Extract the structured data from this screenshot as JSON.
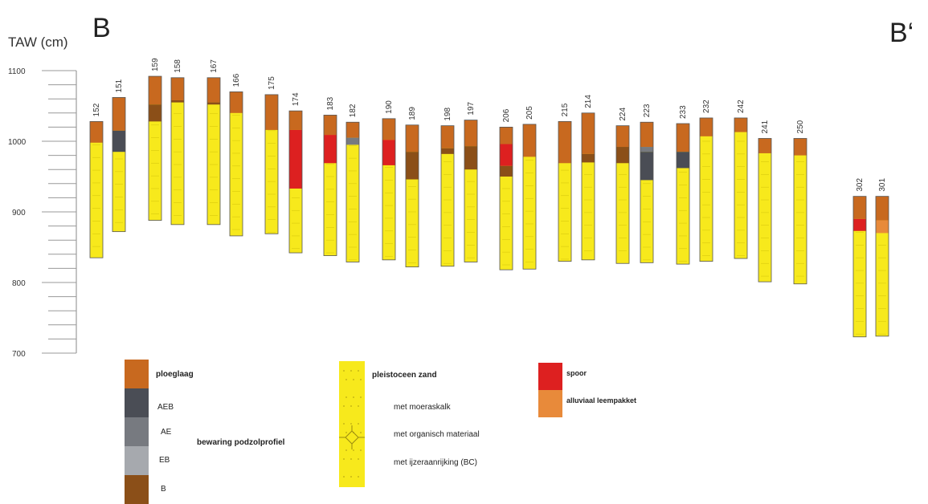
{
  "header": {
    "axis_title": "TAW (cm)",
    "section_start": "B",
    "section_end": "B‘"
  },
  "axis": {
    "min": 700,
    "max": 1100,
    "labeled_ticks": [
      "1100",
      "1000",
      "900",
      "800",
      "700"
    ],
    "minor_step": 20
  },
  "colors": {
    "ploeglaag": "#c8691f",
    "AEB": "#4a4d55",
    "AE": "#777a80",
    "EB": "#a6a9ae",
    "B": "#8b4f18",
    "zand": "#f7e91c",
    "spoor": "#dd2020",
    "alluviaal": "#e88a3a"
  },
  "boreholes": [
    {
      "id": "152",
      "top": 1028,
      "bottom": 835,
      "layers": [
        {
          "t": "ploeglaag",
          "from": 1028,
          "to": 998
        }
      ]
    },
    {
      "id": "151",
      "top": 1062,
      "bottom": 872,
      "layers": [
        {
          "t": "ploeglaag",
          "from": 1062,
          "to": 1015
        },
        {
          "t": "AEB",
          "from": 1015,
          "to": 985
        }
      ]
    },
    {
      "id": "159",
      "top": 1092,
      "bottom": 888,
      "layers": [
        {
          "t": "ploeglaag",
          "from": 1092,
          "to": 1052
        },
        {
          "t": "B",
          "from": 1052,
          "to": 1028
        }
      ]
    },
    {
      "id": "158",
      "top": 1090,
      "bottom": 882,
      "layers": [
        {
          "t": "ploeglaag",
          "from": 1090,
          "to": 1058
        },
        {
          "t": "B",
          "from": 1058,
          "to": 1055
        }
      ]
    },
    {
      "id": "167",
      "top": 1090,
      "bottom": 882,
      "layers": [
        {
          "t": "ploeglaag",
          "from": 1090,
          "to": 1055
        },
        {
          "t": "B",
          "from": 1055,
          "to": 1052
        }
      ]
    },
    {
      "id": "166",
      "top": 1070,
      "bottom": 866,
      "layers": [
        {
          "t": "ploeglaag",
          "from": 1070,
          "to": 1040
        }
      ]
    },
    {
      "id": "175",
      "top": 1066,
      "bottom": 869,
      "layers": [
        {
          "t": "ploeglaag",
          "from": 1066,
          "to": 1016
        }
      ]
    },
    {
      "id": "174",
      "top": 1043,
      "bottom": 842,
      "layers": [
        {
          "t": "ploeglaag",
          "from": 1043,
          "to": 1016
        },
        {
          "t": "spoor",
          "from": 1016,
          "to": 933
        }
      ]
    },
    {
      "id": "183",
      "top": 1037,
      "bottom": 838,
      "layers": [
        {
          "t": "ploeglaag",
          "from": 1037,
          "to": 1009
        },
        {
          "t": "spoor",
          "from": 1009,
          "to": 969
        }
      ]
    },
    {
      "id": "182",
      "top": 1027,
      "bottom": 829,
      "layers": [
        {
          "t": "ploeglaag",
          "from": 1027,
          "to": 1005
        },
        {
          "t": "AE",
          "from": 1005,
          "to": 995
        }
      ]
    },
    {
      "id": "190",
      "top": 1032,
      "bottom": 832,
      "layers": [
        {
          "t": "ploeglaag",
          "from": 1032,
          "to": 1002
        },
        {
          "t": "spoor",
          "from": 1002,
          "to": 966
        }
      ]
    },
    {
      "id": "189",
      "top": 1023,
      "bottom": 822,
      "layers": [
        {
          "t": "ploeglaag",
          "from": 1023,
          "to": 985
        },
        {
          "t": "B",
          "from": 985,
          "to": 946
        }
      ]
    },
    {
      "id": "198",
      "top": 1022,
      "bottom": 823,
      "layers": [
        {
          "t": "ploeglaag",
          "from": 1022,
          "to": 990
        },
        {
          "t": "B",
          "from": 990,
          "to": 982
        }
      ]
    },
    {
      "id": "197",
      "top": 1030,
      "bottom": 829,
      "layers": [
        {
          "t": "ploeglaag",
          "from": 1030,
          "to": 993
        },
        {
          "t": "B",
          "from": 993,
          "to": 960
        }
      ]
    },
    {
      "id": "206",
      "top": 1020,
      "bottom": 818,
      "layers": [
        {
          "t": "ploeglaag",
          "from": 1020,
          "to": 996
        },
        {
          "t": "spoor",
          "from": 996,
          "to": 965
        },
        {
          "t": "B",
          "from": 965,
          "to": 950
        }
      ]
    },
    {
      "id": "205",
      "top": 1024,
      "bottom": 819,
      "layers": [
        {
          "t": "ploeglaag",
          "from": 1024,
          "to": 978
        }
      ]
    },
    {
      "id": "215",
      "top": 1028,
      "bottom": 830,
      "layers": [
        {
          "t": "ploeglaag",
          "from": 1028,
          "to": 969
        }
      ]
    },
    {
      "id": "214",
      "top": 1040,
      "bottom": 832,
      "layers": [
        {
          "t": "ploeglaag",
          "from": 1040,
          "to": 982
        },
        {
          "t": "B",
          "from": 982,
          "to": 970
        }
      ]
    },
    {
      "id": "224",
      "top": 1022,
      "bottom": 827,
      "layers": [
        {
          "t": "ploeglaag",
          "from": 1022,
          "to": 992
        },
        {
          "t": "B",
          "from": 992,
          "to": 969
        }
      ]
    },
    {
      "id": "223",
      "top": 1027,
      "bottom": 828,
      "layers": [
        {
          "t": "ploeglaag",
          "from": 1027,
          "to": 992
        },
        {
          "t": "AE",
          "from": 992,
          "to": 985
        },
        {
          "t": "AEB",
          "from": 985,
          "to": 945
        }
      ]
    },
    {
      "id": "233",
      "top": 1025,
      "bottom": 826,
      "layers": [
        {
          "t": "ploeglaag",
          "from": 1025,
          "to": 985
        },
        {
          "t": "AEB",
          "from": 985,
          "to": 962
        }
      ]
    },
    {
      "id": "232",
      "top": 1033,
      "bottom": 830,
      "layers": [
        {
          "t": "ploeglaag",
          "from": 1033,
          "to": 1007
        }
      ]
    },
    {
      "id": "242",
      "top": 1033,
      "bottom": 834,
      "layers": [
        {
          "t": "ploeglaag",
          "from": 1033,
          "to": 1013
        }
      ]
    },
    {
      "id": "241",
      "top": 1004,
      "bottom": 801,
      "layers": [
        {
          "t": "ploeglaag",
          "from": 1004,
          "to": 983
        }
      ]
    },
    {
      "id": "250",
      "top": 1004,
      "bottom": 798,
      "layers": [
        {
          "t": "ploeglaag",
          "from": 1004,
          "to": 980
        }
      ]
    },
    {
      "id": "302",
      "top": 922,
      "bottom": 723,
      "layers": [
        {
          "t": "ploeglaag",
          "from": 922,
          "to": 890
        },
        {
          "t": "spoor",
          "from": 890,
          "to": 873
        }
      ]
    },
    {
      "id": "301",
      "top": 922,
      "bottom": 724,
      "layers": [
        {
          "t": "ploeglaag",
          "from": 922,
          "to": 888
        },
        {
          "t": "alluviaal",
          "from": 888,
          "to": 870
        }
      ]
    }
  ],
  "legend": {
    "ploeglaag": "ploeglaag",
    "aeb": "AEB",
    "ae": "AE",
    "eb": "EB",
    "b": "B",
    "podzol": "bewaring podzolprofiel",
    "zand": "pleistoceen zand",
    "moeraskalk": "met moeraskalk",
    "organisch": "met organisch materiaal",
    "ijzer": "met ijzeraanrijking (BC)",
    "spoor": "spoor",
    "alluviaal": "alluviaal leempakket"
  }
}
